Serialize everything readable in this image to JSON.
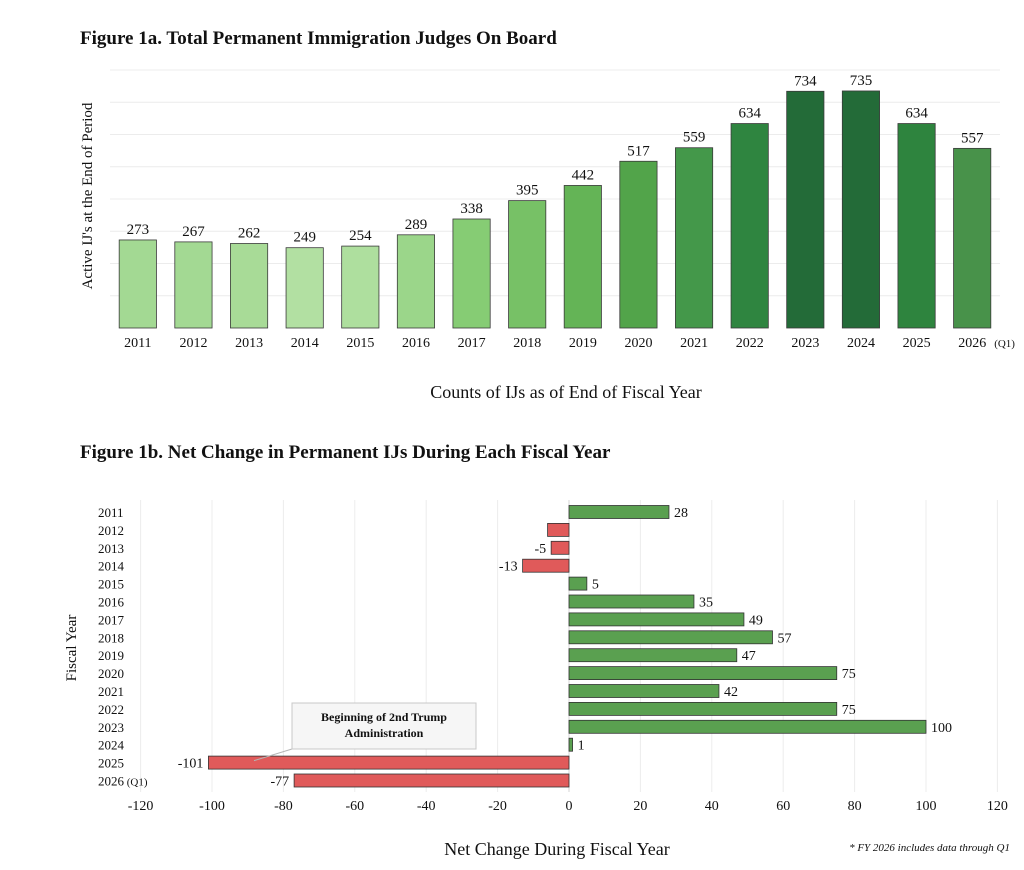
{
  "figures": {
    "fig1a_title": "Figure 1a. Total Permanent Immigration Judges On Board",
    "fig1b_title": "Figure 1b. Net Change in Permanent IJs During Each Fiscal Year",
    "footnote": "* FY 2026 includes data through Q1"
  },
  "chart_data": [
    {
      "type": "bar",
      "title": "Figure 1a. Total Permanent Immigration Judges On Board",
      "categories": [
        "2011",
        "2012",
        "2013",
        "2014",
        "2015",
        "2016",
        "2017",
        "2018",
        "2019",
        "2020",
        "2021",
        "2022",
        "2023",
        "2024",
        "2025",
        "2026"
      ],
      "category_suffix_last": "(Q1)",
      "values": [
        273,
        267,
        262,
        249,
        254,
        289,
        338,
        395,
        442,
        517,
        559,
        634,
        734,
        735,
        634,
        557
      ],
      "xlabel": "Counts of IJs as of End of Fiscal Year",
      "ylabel": "Active IJ's at the End of Period",
      "ylim": [
        0,
        800
      ],
      "grid": true,
      "bar_colors": [
        "#a3d993",
        "#a3d993",
        "#a8db97",
        "#b2e0a2",
        "#aedf9e",
        "#9bd68a",
        "#86cc74",
        "#77c166",
        "#64b456",
        "#52a44a",
        "#44984a",
        "#2f8540",
        "#236b38",
        "#236b38",
        "#2e843e",
        "#48924a"
      ]
    },
    {
      "type": "bar",
      "orientation": "horizontal",
      "title": "Figure 1b. Net Change in Permanent IJs During Each Fiscal Year",
      "categories": [
        "2011",
        "2012",
        "2013",
        "2014",
        "2015",
        "2016",
        "2017",
        "2018",
        "2019",
        "2020",
        "2021",
        "2022",
        "2023",
        "2024",
        "2025",
        "2026 (Q1)"
      ],
      "values": [
        28,
        -6,
        -5,
        -13,
        5,
        35,
        49,
        57,
        47,
        75,
        42,
        75,
        100,
        1,
        -101,
        -77
      ],
      "value_labels": [
        "28",
        "",
        "-5",
        "-13",
        "5",
        "35",
        "49",
        "57",
        "47",
        "75",
        "42",
        "75",
        "100",
        "1",
        "-101",
        "-77"
      ],
      "xlabel": "Net Change During Fiscal Year",
      "ylabel": "Fiscal Year",
      "xlim": [
        -120,
        120
      ],
      "xticks": [
        -120,
        -100,
        -80,
        -60,
        -40,
        -20,
        0,
        20,
        40,
        60,
        80,
        100,
        120
      ],
      "grid": true,
      "positive_color": "#5aa050",
      "negative_color": "#e05a5a",
      "annotation": {
        "text_line1": "Beginning of 2nd Trump",
        "text_line2": "Administration",
        "points_to": "2025"
      }
    }
  ]
}
